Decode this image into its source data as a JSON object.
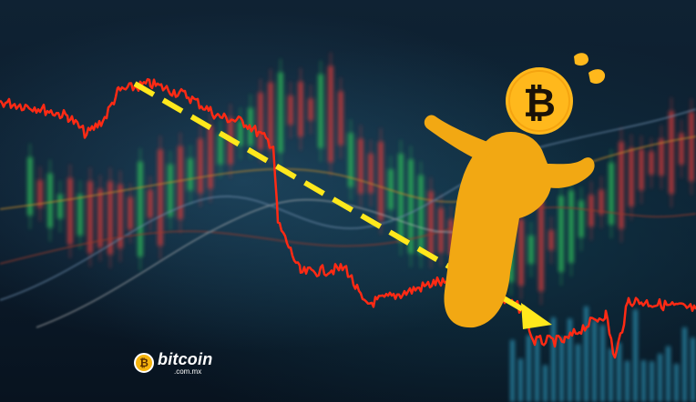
{
  "scene": {
    "description_colors": {
      "price_line": "#ff2a14",
      "trend_arrow": "#ffe81c",
      "character": "#f2a813",
      "coin": "#ffb81c",
      "coin_symbol": "#1a1208",
      "sweat": "#ffb81c",
      "background": "#0b1a2b"
    },
    "coin_symbol": "₿"
  },
  "logo": {
    "icon": "bitcoin-coin-icon",
    "word": "bitcoin",
    "domain": ".com.mx"
  }
}
